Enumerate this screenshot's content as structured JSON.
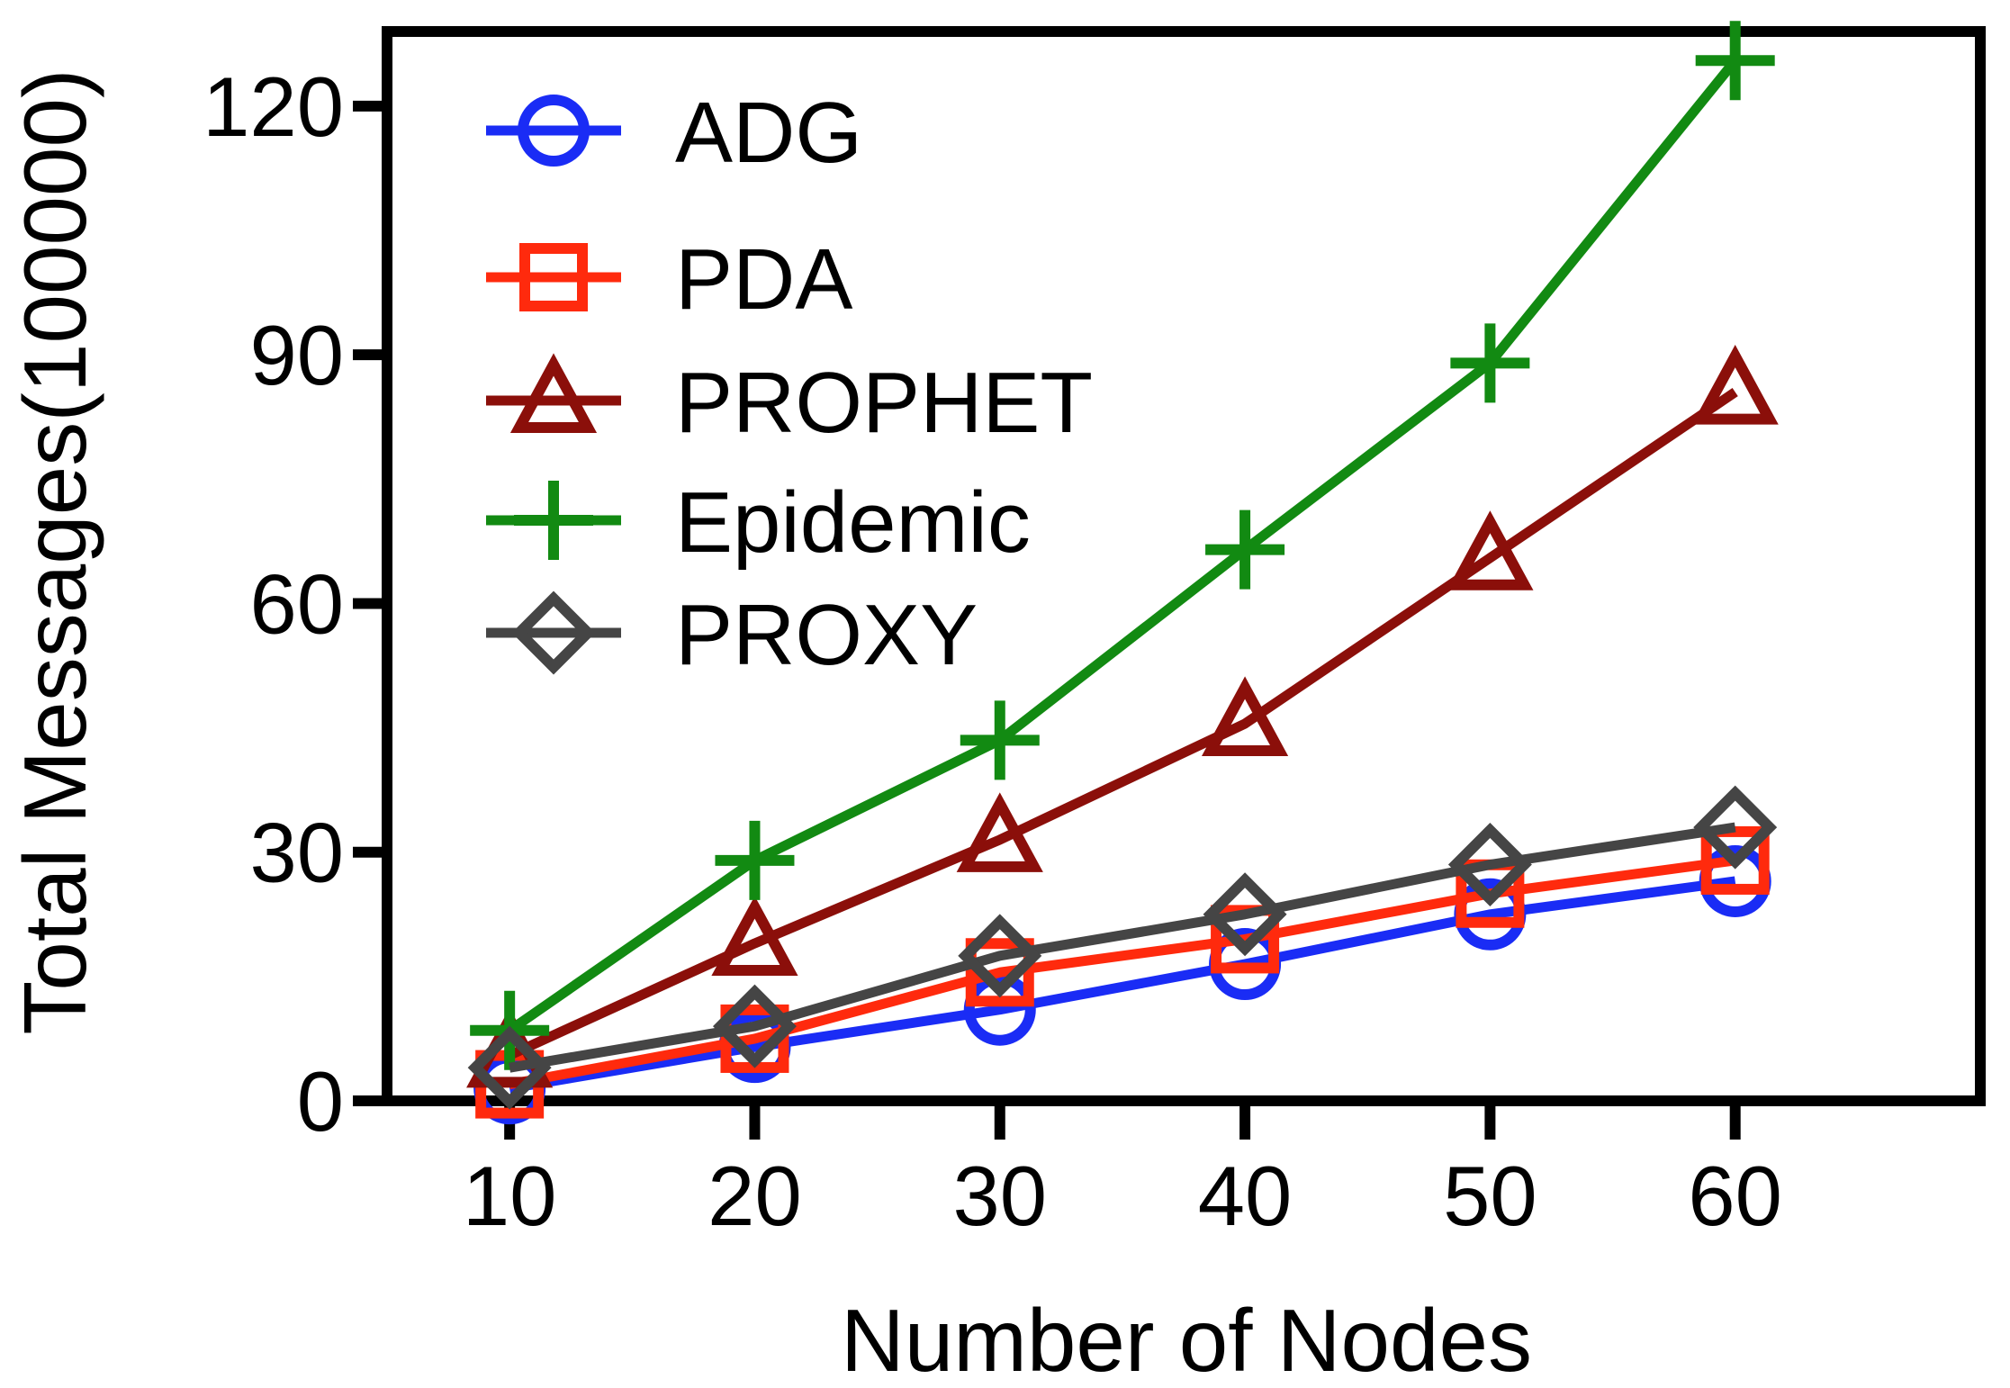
{
  "chart_data": {
    "type": "line",
    "title": "",
    "xlabel": "Number  of Nodes",
    "ylabel": "Total Messages(100000)",
    "x": [
      10,
      20,
      30,
      40,
      50,
      60
    ],
    "xlim": [
      5,
      70
    ],
    "ylim": [
      0,
      129
    ],
    "yticks": [
      0,
      30,
      60,
      90,
      120
    ],
    "xticks": [
      10,
      20,
      30,
      40,
      50,
      60
    ],
    "grid": false,
    "legend_position": "top-left",
    "series": [
      {
        "name": "ADG",
        "marker": "circle",
        "color": "#1a2cf5",
        "values": [
          1.5,
          6.5,
          11,
          16.5,
          22.5,
          26.5
        ]
      },
      {
        "name": "PDA",
        "marker": "square",
        "color": "#ff2a0d",
        "values": [
          2,
          7.5,
          15.5,
          19.5,
          25,
          29
        ]
      },
      {
        "name": "PROPHET",
        "marker": "triangle",
        "color": "#8b0f0a",
        "values": [
          5.5,
          19,
          31.5,
          45.5,
          65.5,
          85.5
        ]
      },
      {
        "name": "Epidemic",
        "marker": "plus",
        "color": "#128a12",
        "values": [
          8.5,
          29,
          43.5,
          66.5,
          89,
          125.5
        ]
      },
      {
        "name": "PROXY",
        "marker": "diamond",
        "color": "#454545",
        "values": [
          4,
          9,
          17.5,
          22.5,
          28.5,
          33
        ]
      }
    ]
  }
}
